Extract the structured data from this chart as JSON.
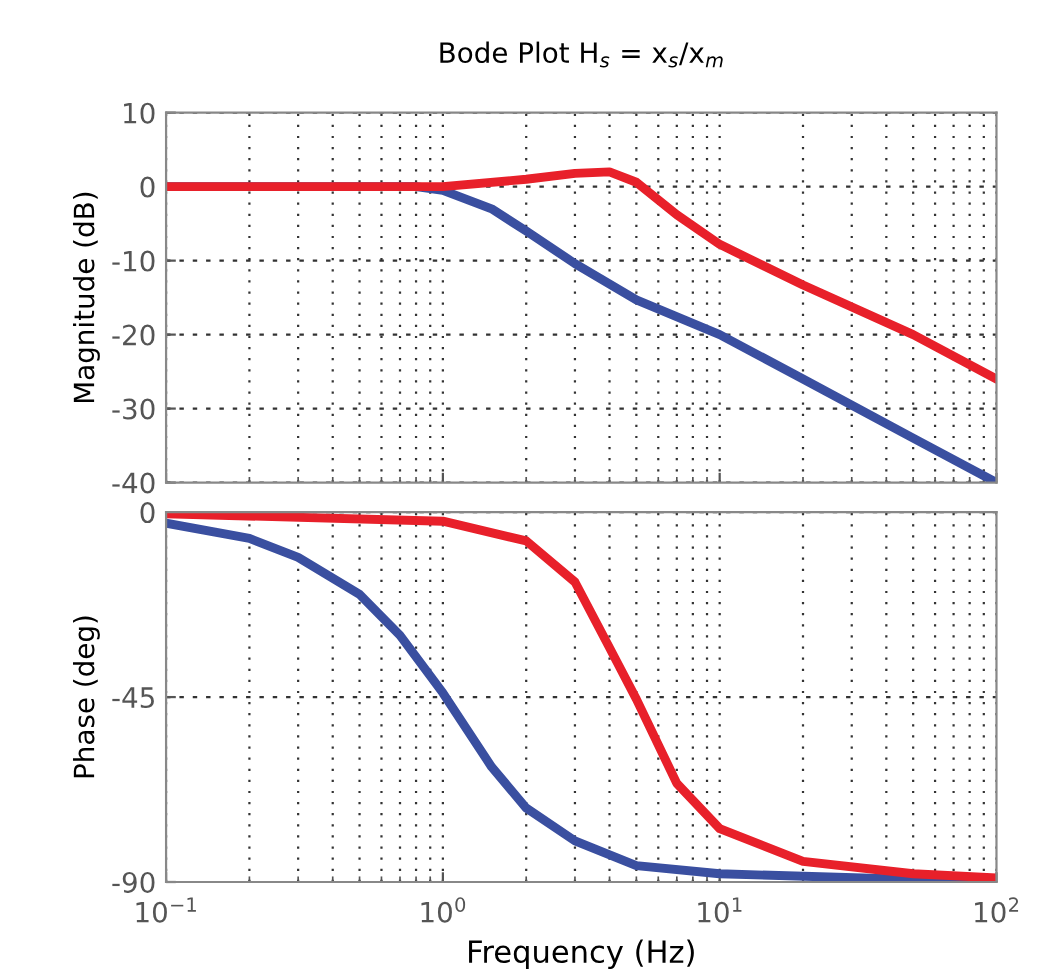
{
  "chart_data": [
    {
      "type": "line",
      "title": "Bode Plot H$_{s}$ = x$_{s}$/x$_{m}$",
      "ylabel": "Magnitude (dB)",
      "log": "x",
      "grid": true,
      "tick_labels": "y",
      "xlim": [
        0.1,
        100
      ],
      "xticks": [
        {
          "value": 0.1,
          "label": null
        },
        {
          "value": 1,
          "label": null
        },
        {
          "value": 10,
          "label": null
        },
        {
          "value": 100,
          "label": null
        }
      ],
      "ylim": [
        -40,
        10
      ],
      "yticks": [
        -40,
        -30,
        -20,
        -10,
        0,
        10
      ],
      "series": [
        {
          "color": "#3a4fa0",
          "x": [
            0.1,
            0.3,
            0.8,
            1,
            1.5,
            2,
            3,
            5,
            10,
            20,
            50,
            100
          ],
          "values": [
            0,
            0,
            0,
            -0.5,
            -3,
            -6,
            -10.4,
            -15.3,
            -20,
            -26,
            -34,
            -40
          ]
        },
        {
          "color": "#e8202a",
          "x": [
            0.1,
            0.5,
            1,
            2,
            3,
            4,
            5,
            7,
            10,
            20,
            50,
            100
          ],
          "values": [
            0,
            0,
            0,
            1,
            1.8,
            2,
            0.6,
            -3.8,
            -7.8,
            -13.3,
            -20,
            -26
          ]
        }
      ]
    },
    {
      "type": "line",
      "ylabel": "Phase (deg)",
      "xlabel": "Frequency (Hz)",
      "log": "x",
      "grid": true,
      "xlim": [
        0.1,
        100
      ],
      "xticks": [
        {
          "value": 0.1,
          "label": "10$^{−1}$"
        },
        {
          "value": 1,
          "label": "10$^{0}$"
        },
        {
          "value": 10,
          "label": "10$^{1}$"
        },
        {
          "value": 100,
          "label": "10$^{2}$"
        }
      ],
      "ylim": [
        -90,
        0
      ],
      "yticks": [
        -90,
        -45,
        0
      ],
      "series": [
        {
          "color": "#3a4fa0",
          "x": [
            0.1,
            0.2,
            0.3,
            0.5,
            0.7,
            1,
            1.5,
            2,
            3,
            5,
            10,
            100
          ],
          "values": [
            -2.7,
            -6.4,
            -11,
            -20,
            -30,
            -44,
            -62,
            -72,
            -80,
            -86,
            -88,
            -90
          ]
        },
        {
          "color": "#e8202a",
          "x": [
            0.1,
            1,
            2,
            3,
            4,
            5,
            7,
            10,
            20,
            50,
            100
          ],
          "values": [
            -0.4,
            -2.2,
            -7,
            -17,
            -33,
            -45.5,
            -66,
            -77,
            -85,
            -88,
            -89
          ]
        }
      ]
    }
  ]
}
